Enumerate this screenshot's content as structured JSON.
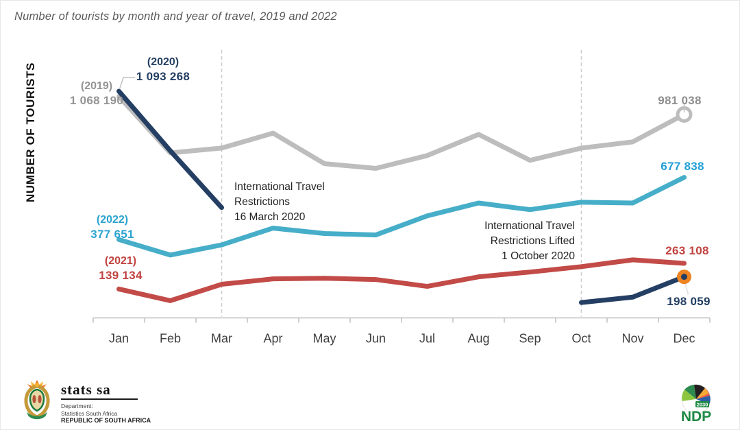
{
  "title": "Number of tourists by month and year of travel, 2019 and 2022",
  "y_axis_label": "NUMBER OF TOURISTS",
  "annotations": {
    "restrictions": {
      "line1": "International Travel",
      "line2": "Restrictions",
      "line3": "16 March 2020"
    },
    "lifted": {
      "line1": "International Travel",
      "line2": "Restrictions Lifted",
      "line3": "1 October 2020"
    }
  },
  "series_labels": {
    "y2019": {
      "year": "(2019)",
      "start": "1 068 190",
      "end": "981 038"
    },
    "y2020": {
      "year": "(2020)",
      "start": "1 093 268",
      "end": "198 059"
    },
    "y2021": {
      "year": "(2021)",
      "start": "139 134",
      "end": "263 108"
    },
    "y2022": {
      "year": "(2022)",
      "start": "377 651",
      "end": "677 838"
    }
  },
  "chart_data": {
    "type": "line",
    "x": [
      "Jan",
      "Feb",
      "Mar",
      "Apr",
      "May",
      "Jun",
      "Jul",
      "Aug",
      "Sep",
      "Oct",
      "Nov",
      "Dec"
    ],
    "series": [
      {
        "name": "2019",
        "color": "#bdbdbd",
        "values": [
          1068190,
          796000,
          819000,
          891000,
          744000,
          721000,
          783000,
          885000,
          760000,
          819000,
          849000,
          981038
        ],
        "end_marker": "open-circle"
      },
      {
        "name": "2020",
        "color": "#243f63",
        "values": [
          1093268,
          806000,
          532000,
          null,
          null,
          null,
          null,
          null,
          null,
          74000,
          100000,
          198059
        ],
        "end_marker": "orange-dot"
      },
      {
        "name": "2021",
        "color": "#c24b48",
        "values": [
          139134,
          83000,
          162000,
          188000,
          191000,
          185000,
          152000,
          198000,
          221000,
          247000,
          280000,
          263108
        ],
        "end_marker": null
      },
      {
        "name": "2022",
        "color": "#46aec8",
        "values": [
          377651,
          303000,
          352000,
          433000,
          407000,
          400000,
          492000,
          554000,
          522000,
          558000,
          554000,
          677838
        ],
        "end_marker": null
      }
    ],
    "ylim": [
      0,
      1150000
    ],
    "event_lines": [
      {
        "month": "Mar"
      },
      {
        "month": "Oct"
      }
    ],
    "legend_position": "inline-labels",
    "grid": false
  },
  "marker_colors": {
    "orange_ring": "#ee8322",
    "orange_core": "#243f63",
    "open_circle_stroke": "#bdbdbd"
  },
  "footer": {
    "stats_sa": {
      "brand": "stats sa",
      "dept": "Department:",
      "org": "Statistics South Africa",
      "country": "REPUBLIC OF SOUTH AFRICA"
    },
    "ndp": {
      "name": "NDP",
      "year": "2030"
    }
  }
}
